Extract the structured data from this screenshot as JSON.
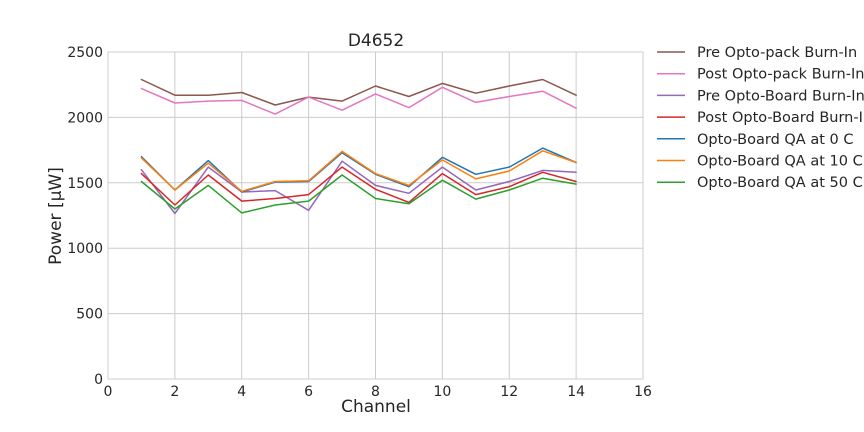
{
  "chart_data": {
    "type": "line",
    "title": "D4652",
    "xlabel": "Channel",
    "ylabel": "Power [µW]",
    "xlim": [
      0,
      16
    ],
    "ylim": [
      0,
      2500
    ],
    "xticks": [
      "0",
      "2",
      "4",
      "6",
      "8",
      "10",
      "12",
      "14",
      "16"
    ],
    "yticks": [
      "0",
      "500",
      "1000",
      "1500",
      "2000",
      "2500"
    ],
    "grid": true,
    "legend_position": "outside-right",
    "x": [
      1,
      2,
      3,
      4,
      5,
      6,
      7,
      8,
      9,
      10,
      11,
      12,
      13,
      14
    ],
    "series": [
      {
        "name": "Pre Opto-pack Burn-In",
        "color": "#8c564b",
        "values": [
          2290,
          2170,
          2170,
          2190,
          2095,
          2155,
          2125,
          2240,
          2160,
          2260,
          2185,
          2240,
          2290,
          2170
        ]
      },
      {
        "name": "Post Opto-pack Burn-In",
        "color": "#e377c2",
        "values": [
          2220,
          2110,
          2125,
          2130,
          2025,
          2155,
          2055,
          2180,
          2075,
          2230,
          2115,
          2160,
          2200,
          2070
        ]
      },
      {
        "name": "Pre Opto-Board Burn-In",
        "color": "#9467bd",
        "values": [
          1600,
          1265,
          1620,
          1430,
          1440,
          1290,
          1665,
          1480,
          1420,
          1620,
          1445,
          1510,
          1595,
          1580
        ]
      },
      {
        "name": "Post Opto-Board Burn-In",
        "color": "#d62728",
        "values": [
          1570,
          1330,
          1560,
          1360,
          1380,
          1410,
          1620,
          1450,
          1350,
          1570,
          1410,
          1470,
          1580,
          1510
        ]
      },
      {
        "name": "Opto-Board QA at 0 C",
        "color": "#1f77b4",
        "values": [
          1700,
          1445,
          1670,
          1430,
          1505,
          1510,
          1730,
          1565,
          1470,
          1695,
          1565,
          1620,
          1765,
          1655
        ]
      },
      {
        "name": "Opto-Board QA at 10 C",
        "color": "#ff7f0e",
        "values": [
          1690,
          1445,
          1650,
          1435,
          1510,
          1515,
          1740,
          1570,
          1480,
          1675,
          1530,
          1590,
          1745,
          1655
        ]
      },
      {
        "name": "Opto-Board QA at 50 C",
        "color": "#2ca02c",
        "values": [
          1510,
          1300,
          1480,
          1270,
          1330,
          1360,
          1560,
          1380,
          1340,
          1520,
          1375,
          1445,
          1535,
          1490
        ]
      }
    ]
  }
}
